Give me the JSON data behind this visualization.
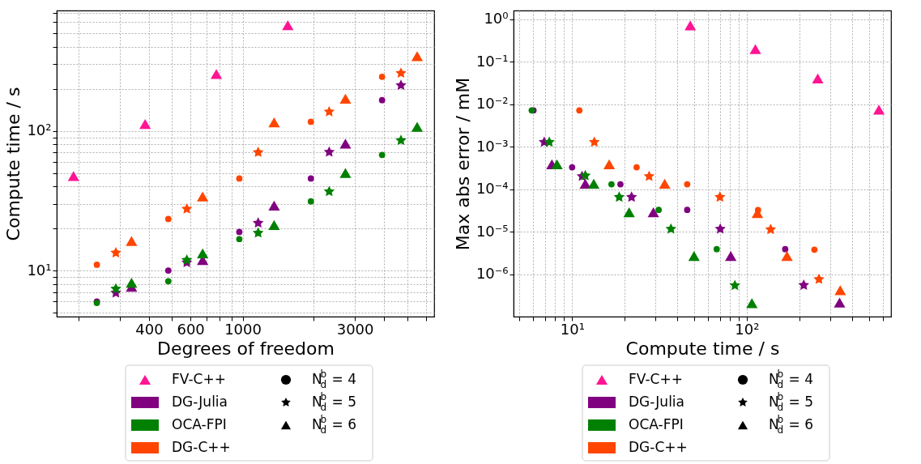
{
  "chart_data": [
    {
      "type": "scatter",
      "xlabel": "Degrees of freedom",
      "ylabel": "Compute time / s",
      "log": "xy",
      "grid": true,
      "legend": "bottom",
      "xlim": [
        162,
        6520
      ],
      "ylim": [
        4.68,
        727
      ],
      "xticks": [
        {
          "value": 200,
          "label": null
        },
        {
          "value": 300,
          "label": null
        },
        400,
        {
          "value": 500,
          "label": null
        },
        600,
        {
          "value": 700,
          "label": null
        },
        {
          "value": 800,
          "label": null
        },
        {
          "value": 900,
          "label": null
        },
        1000,
        {
          "value": 2000,
          "label": null
        },
        3000,
        {
          "value": 4000,
          "label": null
        },
        {
          "value": 5000,
          "label": null
        },
        {
          "value": 6000,
          "label": null
        }
      ],
      "yticks": [
        {
          "value": 5,
          "label": null
        },
        {
          "value": 6,
          "label": null
        },
        {
          "value": 7,
          "label": null
        },
        {
          "value": 8,
          "label": null
        },
        {
          "value": 9,
          "label": null
        },
        {
          "value": 10,
          "label": "10¹"
        },
        {
          "value": 20,
          "label": null
        },
        {
          "value": 30,
          "label": null
        },
        {
          "value": 40,
          "label": null
        },
        {
          "value": 50,
          "label": null
        },
        {
          "value": 60,
          "label": null
        },
        {
          "value": 70,
          "label": null
        },
        {
          "value": 80,
          "label": null
        },
        {
          "value": 90,
          "label": null
        },
        {
          "value": 100,
          "label": "10²"
        },
        {
          "value": 200,
          "label": null
        },
        {
          "value": 300,
          "label": null
        },
        {
          "value": 400,
          "label": null
        },
        {
          "value": 500,
          "label": null
        },
        {
          "value": 600,
          "label": null
        },
        {
          "value": 700,
          "label": null
        }
      ],
      "annotations": [
        "N$^{b}$$_{d}$ = 4",
        "N$^{b}$$_{d}$ = 5",
        "N$^{b}$$_{d}$ = 6"
      ],
      "series": [
        {
          "name": "FV-C++",
          "color": "#ff1493",
          "marker": "triangle",
          "x": [
            191,
            385,
            773,
            1556
          ],
          "values": [
            47.5,
            112,
            255,
            571
          ]
        },
        {
          "name": "DG-Julia",
          "color": "#800080",
          "marker": "circle",
          "x": [
            240,
            483,
            968,
            1950,
            3915
          ],
          "values": [
            6.01,
            10.0,
            18.9,
            45.6,
            166
          ]
        },
        {
          "color": "#800080",
          "marker": "star",
          "x": [
            289,
            579,
            1164,
            2333,
            4710
          ],
          "values": [
            6.92,
            11.4,
            21.9,
            70.5,
            212
          ]
        },
        {
          "color": "#800080",
          "marker": "triangle",
          "x": [
            337,
            676,
            1361,
            2735
          ],
          "values": [
            7.66,
            11.9,
            29.2,
            81
          ]
        },
        {
          "name": "OCA-FPI",
          "color": "#008000",
          "marker": "circle",
          "x": [
            240,
            483,
            968,
            1950,
            3915
          ],
          "values": [
            5.87,
            8.38,
            16.8,
            31.3,
            67.3
          ]
        },
        {
          "color": "#008000",
          "marker": "star",
          "x": [
            289,
            579,
            1164,
            2333,
            4710
          ],
          "values": [
            7.4,
            11.9,
            18.6,
            36.8,
            85.5
          ]
        },
        {
          "color": "#008000",
          "marker": "triangle",
          "x": [
            337,
            676,
            1361,
            2735,
            5520
          ],
          "values": [
            8.19,
            13.3,
            21.2,
            49.9,
            107
          ]
        },
        {
          "name": "DG-C++",
          "color": "#ff4500",
          "marker": "circle",
          "x": [
            240,
            483,
            968,
            1950,
            3915
          ],
          "values": [
            11.0,
            23.4,
            45.6,
            116,
            244
          ]
        },
        {
          "color": "#ff4500",
          "marker": "star",
          "x": [
            289,
            579,
            1164,
            2333,
            4710
          ],
          "values": [
            13.4,
            27.6,
            70.2,
            137,
            259
          ]
        },
        {
          "color": "#ff4500",
          "marker": "triangle",
          "x": [
            337,
            676,
            1361,
            2735,
            5520
          ],
          "values": [
            16.3,
            33.9,
            115,
            170,
            343
          ]
        }
      ]
    },
    {
      "type": "scatter",
      "xlabel": "Compute time / s",
      "ylabel": "Max abs error / mM",
      "log": "xy",
      "grid": true,
      "legend": "bottom",
      "xlim": [
        4.62,
        670
      ],
      "ylim": [
        1.02e-07,
        1.6
      ],
      "xticks": [
        {
          "value": 5,
          "label": null
        },
        {
          "value": 6,
          "label": null
        },
        {
          "value": 7,
          "label": null
        },
        {
          "value": 8,
          "label": null
        },
        {
          "value": 9,
          "label": null
        },
        {
          "value": 10,
          "label": "10¹"
        },
        {
          "value": 20,
          "label": null
        },
        {
          "value": 30,
          "label": null
        },
        {
          "value": 40,
          "label": null
        },
        {
          "value": 50,
          "label": null
        },
        {
          "value": 60,
          "label": null
        },
        {
          "value": 70,
          "label": null
        },
        {
          "value": 80,
          "label": null
        },
        {
          "value": 90,
          "label": null
        },
        {
          "value": 100,
          "label": "10²"
        },
        {
          "value": 200,
          "label": null
        },
        {
          "value": 300,
          "label": null
        },
        {
          "value": 400,
          "label": null
        },
        {
          "value": 500,
          "label": null
        },
        {
          "value": 600,
          "label": null
        }
      ],
      "yticks": [
        {
          "value": 1e-06,
          "label": "10⁻⁶"
        },
        {
          "value": 1e-05,
          "label": "10⁻⁵"
        },
        {
          "value": 0.0001,
          "label": "10⁻⁴"
        },
        {
          "value": 0.001,
          "label": "10⁻³"
        },
        {
          "value": 0.01,
          "label": "10⁻²"
        },
        {
          "value": 0.1,
          "label": "10⁻¹"
        },
        {
          "value": 1,
          "label": "10⁰"
        }
      ],
      "annotations": [
        "N$^{b}$$_{d}$ = 4",
        "N$^{b}$$_{d}$ = 5",
        "N$^{b}$$_{d}$ = 6"
      ],
      "series": [
        {
          "name": "FV-C++",
          "color": "#ff1493",
          "marker": "triangle",
          "x": [
            47.5,
            112,
            255,
            571
          ],
          "values": [
            0.714,
            0.198,
            0.0404,
            0.0075
          ]
        },
        {
          "name": "DG-Julia",
          "color": "#800080",
          "marker": "circle",
          "x": [
            6.01,
            10.0,
            18.9,
            45.6,
            166
          ],
          "values": [
            0.0072,
            0.00033,
            0.000132,
            3.3e-05,
            3.93e-06
          ]
        },
        {
          "color": "#800080",
          "marker": "star",
          "x": [
            6.92,
            11.4,
            21.9,
            70.5,
            212
          ],
          "values": [
            0.00129,
            0.000202,
            6.57e-05,
            1.17e-05,
            5.6e-07
          ]
        },
        {
          "color": "#800080",
          "marker": "triangle",
          "x": [
            7.66,
            11.9,
            29.2,
            81,
            340
          ],
          "values": [
            0.00039,
            0.000136,
            2.9e-05,
            2.73e-06,
            2.19e-07
          ]
        },
        {
          "name": "OCA-FPI",
          "color": "#008000",
          "marker": "circle",
          "x": [
            5.87,
            8.38,
            16.8,
            31.3,
            67.3
          ],
          "values": [
            0.0072,
            null,
            0.000132,
            3.3e-05,
            3.93e-06
          ]
        },
        {
          "color": "#008000",
          "marker": "star",
          "x": [
            7.4,
            11.9,
            18.6,
            36.8,
            85.5
          ],
          "values": [
            0.00129,
            0.00021,
            6.57e-05,
            1.17e-05,
            5.5e-07
          ]
        },
        {
          "color": "#008000",
          "marker": "triangle",
          "x": [
            8.19,
            13.3,
            21.2,
            49.9,
            107
          ],
          "values": [
            0.00039,
            0.000136,
            2.9e-05,
            2.73e-06,
            2.12e-07
          ]
        },
        {
          "name": "DG-C++",
          "color": "#ff4500",
          "marker": "circle",
          "x": [
            11.0,
            23.4,
            45.6,
            116,
            244
          ],
          "values": [
            0.0072,
            0.00033,
            0.000132,
            3.26e-05,
            3.82e-06
          ]
        },
        {
          "color": "#ff4500",
          "marker": "star",
          "x": [
            13.4,
            27.6,
            70.2,
            137,
            259
          ],
          "values": [
            0.00129,
            0.000202,
            6.57e-05,
            1.14e-05,
            7.7e-07
          ]
        },
        {
          "color": "#ff4500",
          "marker": "triangle",
          "x": [
            16.3,
            33.9,
            115,
            170,
            343
          ],
          "values": [
            0.00039,
            0.000136,
            2.77e-05,
            2.73e-06,
            4.28e-07
          ]
        }
      ]
    }
  ]
}
